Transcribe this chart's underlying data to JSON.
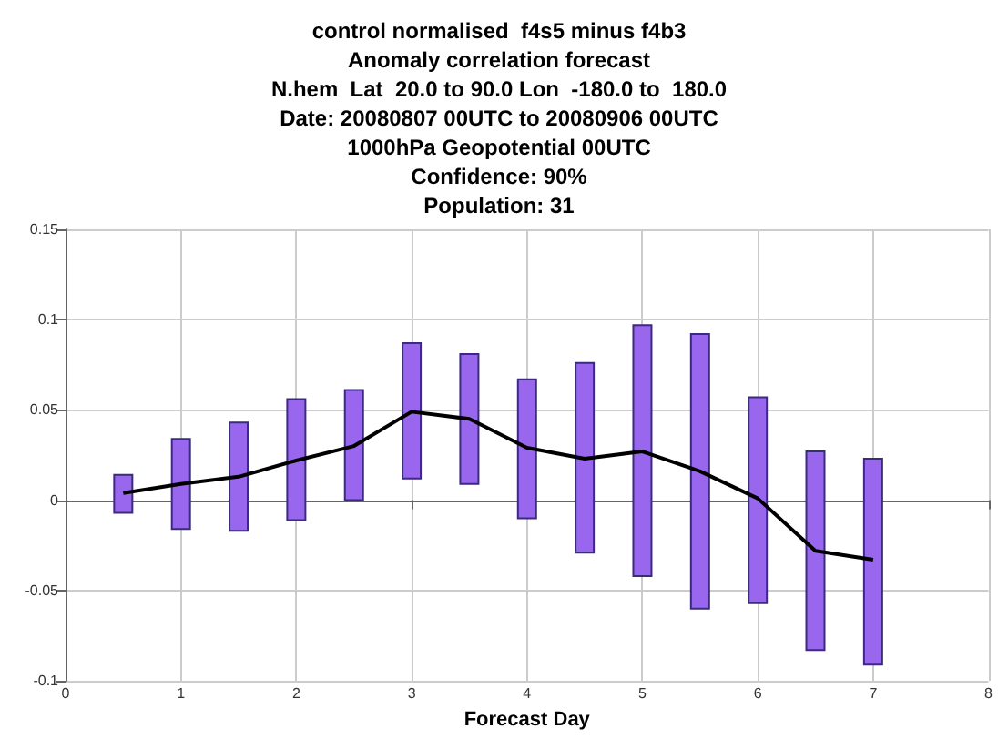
{
  "chart_data": {
    "type": "bar",
    "title": "control normalised  f4s5 minus f4b3",
    "subtitle": "Anomaly correlation forecast\nN.hem  Lat  20.0 to 90.0 Lon  -180.0 to  180.0\nDate: 20080807 00UTC to 20080906 00UTC\n1000hPa Geopotential 00UTC\nConfidence: 90%\nPopulation: 31",
    "xlabel": "Forecast Day",
    "x": [
      0.5,
      1,
      1.5,
      2,
      2.5,
      3,
      3.5,
      4,
      4.5,
      5,
      5.5,
      6,
      6.5,
      7
    ],
    "series": [
      {
        "color": "#9966ee",
        "base": [
          -0.007,
          -0.016,
          -0.017,
          -0.011,
          0,
          0.012,
          0.009,
          -0.01,
          -0.029,
          -0.042,
          -0.06,
          -0.057,
          -0.083,
          -0.091
        ],
        "values": [
          0.021,
          0.05,
          0.06,
          0.067,
          0.061,
          0.075,
          0.072,
          0.077,
          0.105,
          0.139,
          0.152,
          0.114,
          0.11,
          0.114
        ]
      },
      {
        "type": "line",
        "color": "#000000",
        "values": [
          0.004,
          0.009,
          0.013,
          0.022,
          0.03,
          0.049,
          0.045,
          0.029,
          0.023,
          0.027,
          0.016,
          0.001,
          -0.028,
          -0.033
        ]
      }
    ],
    "xlim": [
      0,
      8
    ],
    "xticks": [
      0,
      1,
      2,
      3,
      4,
      5,
      6,
      7,
      8
    ],
    "ylim": [
      -0.1,
      0.15
    ],
    "yticks": [
      -0.1,
      -0.05,
      0,
      0.05,
      0.1,
      0.15
    ],
    "grid": true,
    "marker": "none",
    "line_style": "solid"
  }
}
